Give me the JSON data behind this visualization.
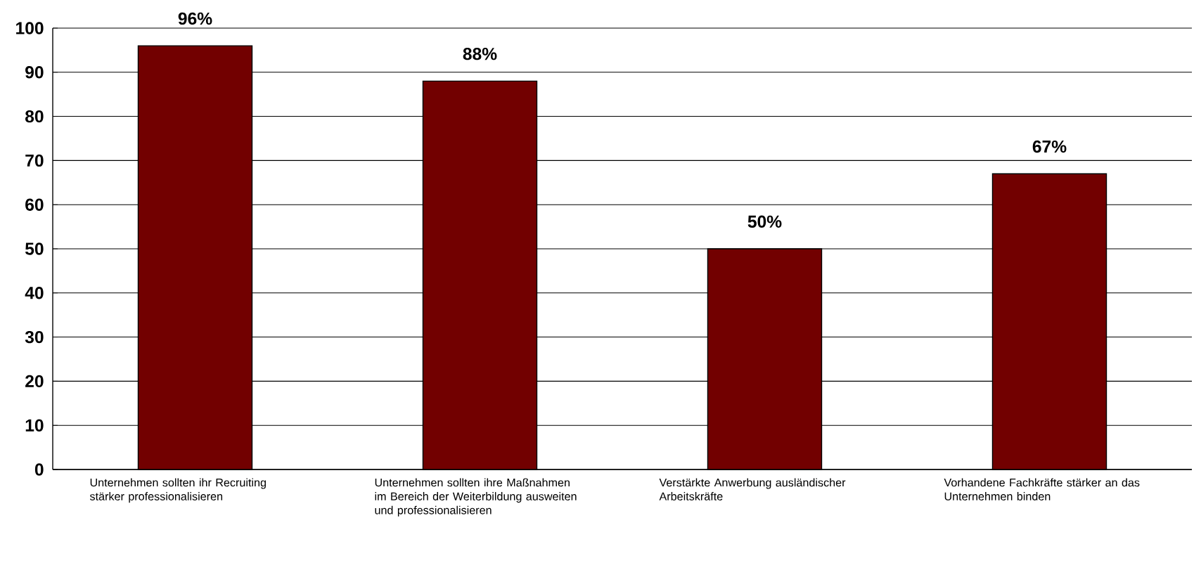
{
  "chart_data": {
    "type": "bar",
    "categories": [
      "Unternehmen sollten ihr Recruiting stärker professionalisieren",
      "Unternehmen sollten ihre Maßnahmen im Bereich der Weiterbildung ausweiten und professionalisieren",
      "Verstärkte Anwerbung ausländischer Arbeitskräfte",
      "Vorhandene Fachkräfte stärker an das Unternehmen binden"
    ],
    "values": [
      96,
      88,
      50,
      67
    ],
    "value_labels": [
      "96%",
      "88%",
      "50%",
      "67%"
    ],
    "color": "#720000",
    "ylim": [
      0,
      100
    ],
    "yticks": [
      0,
      10,
      20,
      30,
      40,
      50,
      60,
      70,
      80,
      90,
      100
    ],
    "grid": "y"
  }
}
